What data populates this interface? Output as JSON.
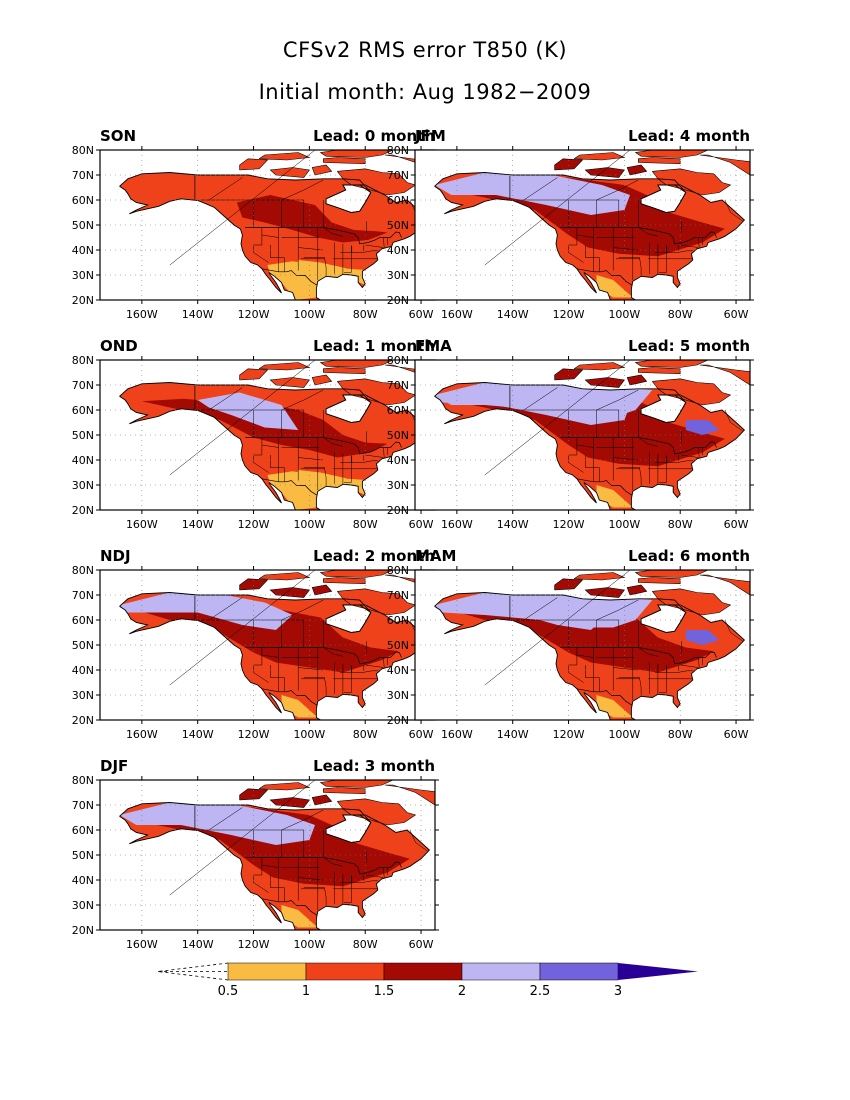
{
  "title": {
    "line1": "CFSv2 RMS error T850 (K)",
    "line2": "Initial month: Aug 1982−2009"
  },
  "axes": {
    "lat_labels": [
      "80N",
      "70N",
      "60N",
      "50N",
      "40N",
      "30N",
      "20N"
    ],
    "lon_labels": [
      "160W",
      "140W",
      "120W",
      "100W",
      "80W",
      "60W"
    ],
    "lon_range": [
      -175,
      -55
    ],
    "lat_range": [
      20,
      80
    ],
    "grid": "dotted"
  },
  "colors": {
    "c05_1": "#f9bb42",
    "c1_15": "#f0421a",
    "c15_2": "#a30a04",
    "c2_25": "#bdb6f3",
    "c25_3": "#7262dc",
    "c3p": "#280096",
    "land": "#ffffff",
    "boundary": "#000000"
  },
  "colorbar": {
    "labels": [
      "0.5",
      "1",
      "1.5",
      "2",
      "2.5",
      "3"
    ],
    "colors": [
      "#f9bb42",
      "#f0421a",
      "#a30a04",
      "#bdb6f3",
      "#7262dc",
      "#280096"
    ],
    "extend": "both"
  },
  "panels": [
    {
      "season": "SON",
      "lead": "Lead: 0 month",
      "cold_extent": 0,
      "cool_extent": 0
    },
    {
      "season": "OND",
      "lead": "Lead: 1 month",
      "cold_extent": 1,
      "cool_extent": 0
    },
    {
      "season": "NDJ",
      "lead": "Lead: 2 month",
      "cold_extent": 2,
      "cool_extent": 0
    },
    {
      "season": "DJF",
      "lead": "Lead: 3 month",
      "cold_extent": 3,
      "cool_extent": 0
    },
    {
      "season": "JFM",
      "lead": "Lead: 4 month",
      "cold_extent": 3,
      "cool_extent": 0
    },
    {
      "season": "FMA",
      "lead": "Lead: 5 month",
      "cold_extent": 3,
      "cool_extent": 1
    },
    {
      "season": "MAM",
      "lead": "Lead: 6 month",
      "cold_extent": 2,
      "cool_extent": 1
    }
  ]
}
